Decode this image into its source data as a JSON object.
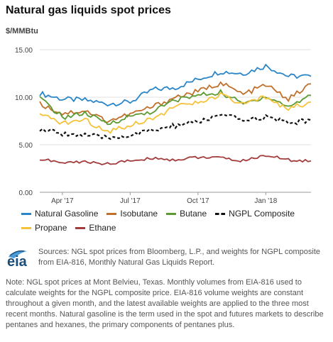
{
  "title": "Natural gas liquids spot prices",
  "unit": "$/MMBtu",
  "chart_data": {
    "type": "line",
    "title": "Natural gas liquids spot prices",
    "ylabel": "$/MMBtu",
    "ylim": [
      0,
      15
    ],
    "yticks": [
      "15.00",
      "10.00",
      "5.00",
      "0.00"
    ],
    "xticks": [
      "Apr '17",
      "Jul '17",
      "Oct '17",
      "Jan '18"
    ],
    "x_range": [
      "2017-03",
      "2018-03"
    ],
    "legend_position": "bottom",
    "grid": "horizontal",
    "x": [
      "Mar '17",
      "Apr '17",
      "May '17",
      "Jun '17",
      "Jul '17",
      "Aug '17",
      "Sep '17",
      "Oct '17",
      "Nov '17",
      "Dec '17",
      "Jan '18",
      "Feb '18",
      "Mar '18"
    ],
    "series": [
      {
        "name": "Natural Gasoline",
        "color": "#2a86c8",
        "dashed": false,
        "values": [
          10.4,
          9.8,
          9.7,
          9.3,
          9.5,
          10.8,
          11.0,
          11.9,
          12.7,
          12.5,
          13.3,
          12.2,
          12.2
        ]
      },
      {
        "name": "Isobutane",
        "color": "#c0702a",
        "dashed": false,
        "values": [
          9.3,
          8.3,
          8.6,
          7.5,
          8.2,
          9.0,
          10.0,
          10.6,
          11.5,
          10.3,
          11.3,
          9.8,
          11.4
        ]
      },
      {
        "name": "Butane",
        "color": "#5c9a32",
        "dashed": false,
        "values": [
          9.9,
          7.9,
          8.3,
          7.2,
          8.0,
          8.5,
          9.7,
          10.2,
          10.5,
          9.3,
          10.1,
          9.0,
          10.2
        ]
      },
      {
        "name": "NGPL Composite",
        "color": "#111111",
        "dashed": true,
        "values": [
          6.6,
          6.2,
          6.0,
          5.7,
          6.0,
          6.5,
          7.0,
          7.4,
          8.1,
          7.6,
          7.9,
          7.3,
          7.6
        ]
      },
      {
        "name": "Propane",
        "color": "#f5c23a",
        "dashed": false,
        "values": [
          8.1,
          7.3,
          7.6,
          6.4,
          7.1,
          7.8,
          9.0,
          9.4,
          10.2,
          9.2,
          10.0,
          8.8,
          9.5
        ]
      },
      {
        "name": "Ethane",
        "color": "#a33c3c",
        "dashed": false,
        "values": [
          3.5,
          3.1,
          3.2,
          3.0,
          3.3,
          3.6,
          3.4,
          3.7,
          3.6,
          3.3,
          3.9,
          3.4,
          3.3
        ]
      }
    ]
  },
  "legend": {
    "row1": [
      "Natural Gasoline",
      "Isobutane",
      "Butane",
      "NGPL Composite"
    ],
    "row2": [
      "Propane",
      "Ethane"
    ]
  },
  "logo": {
    "text": "eia"
  },
  "source": "Sources: NGL spot prices from Bloomberg, L.P., and weights for NGPL composite from EIA-816, Monthly Natural Gas Liquids Report.",
  "note": "Note: NGL spot prices at Mont Belvieu, Texas. Monthly volumes from EIA-816 used to calculate weights for the NGPL composite price. EIA-816 volume weights are constant throughout a given month, and the latest available weights are applied to the three most recent months. Natural gasoline is the term used in the spot and futures markets to describe pentanes and hexanes, the primary components of pentanes plus."
}
